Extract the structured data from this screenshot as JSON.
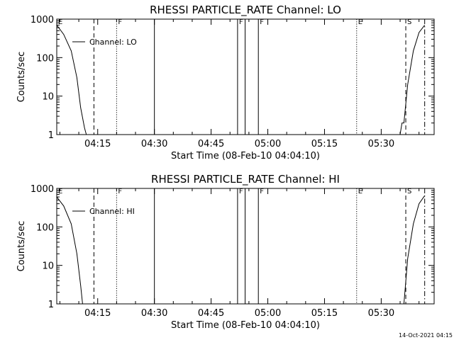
{
  "chart_data": [
    {
      "type": "line",
      "title": "RHESSI PARTICLE_RATE Channel: LO",
      "xlabel": "Start Time (08-Feb-10 04:04:10)",
      "ylabel": "Counts/sec",
      "y_scale": "log",
      "ylim": [
        1,
        1000
      ],
      "xlim": [
        "04:04:10",
        "05:44:00"
      ],
      "x_tick_labels": [
        "04:15",
        "04:30",
        "04:45",
        "05:00",
        "05:15",
        "05:30"
      ],
      "y_tick_labels": [
        "1",
        "10",
        "100",
        "1000"
      ],
      "legend": {
        "label": "Channel: LO",
        "placement": "top-left"
      },
      "series": [
        {
          "name": "Channel: LO",
          "x": [
            "04:04:10",
            "04:06:00",
            "04:08:00",
            "04:09:30",
            "04:10:30",
            "04:11:30",
            "04:12:00"
          ],
          "y": [
            700,
            400,
            150,
            30,
            5,
            1.5,
            1
          ]
        },
        {
          "name": "Channel: LO",
          "x": [
            "05:35:00",
            "05:35:30",
            "05:36:00",
            "05:37:00",
            "05:38:30",
            "05:40:00",
            "05:41:30"
          ],
          "y": [
            1,
            2,
            2,
            20,
            150,
            450,
            700
          ]
        }
      ],
      "markers": [
        {
          "label": "E",
          "time": "04:04:10",
          "style": "none"
        },
        {
          "label": "",
          "time": "04:14:00",
          "style": "dashed"
        },
        {
          "label": "F",
          "time": "04:20:00",
          "style": "dotted"
        },
        {
          "label": "",
          "time": "04:30:00",
          "style": "solid"
        },
        {
          "label": "F",
          "time": "04:52:00",
          "style": "solid"
        },
        {
          "label": "",
          "time": "04:54:00",
          "style": "solid"
        },
        {
          "label": "F",
          "time": "04:57:30",
          "style": "solid"
        },
        {
          "label": "E",
          "time": "05:23:30",
          "style": "dotted"
        },
        {
          "label": "S",
          "time": "05:36:30",
          "style": "dashed"
        },
        {
          "label": "",
          "time": "05:41:30",
          "style": "dashdot"
        }
      ]
    },
    {
      "type": "line",
      "title": "RHESSI PARTICLE_RATE Channel: HI",
      "xlabel": "Start Time (08-Feb-10 04:04:10)",
      "ylabel": "Counts/sec",
      "y_scale": "log",
      "ylim": [
        1,
        1000
      ],
      "xlim": [
        "04:04:10",
        "05:44:00"
      ],
      "x_tick_labels": [
        "04:15",
        "04:30",
        "04:45",
        "05:00",
        "05:15",
        "05:30"
      ],
      "y_tick_labels": [
        "1",
        "10",
        "100",
        "1000"
      ],
      "legend": {
        "label": "Channel: HI",
        "placement": "top-left"
      },
      "series": [
        {
          "name": "Channel: HI",
          "x": [
            "04:04:10",
            "04:06:00",
            "04:08:00",
            "04:09:30",
            "04:10:30",
            "04:11:00"
          ],
          "y": [
            600,
            350,
            120,
            20,
            3,
            1
          ]
        },
        {
          "name": "Channel: HI",
          "x": [
            "05:36:00",
            "05:37:00",
            "05:38:30",
            "05:40:00",
            "05:41:30"
          ],
          "y": [
            1,
            15,
            120,
            400,
            650
          ]
        }
      ],
      "markers": [
        {
          "label": "E",
          "time": "04:04:10",
          "style": "none"
        },
        {
          "label": "",
          "time": "04:14:00",
          "style": "dashed"
        },
        {
          "label": "F",
          "time": "04:20:00",
          "style": "dotted"
        },
        {
          "label": "",
          "time": "04:30:00",
          "style": "solid"
        },
        {
          "label": "F",
          "time": "04:52:00",
          "style": "solid"
        },
        {
          "label": "",
          "time": "04:54:00",
          "style": "solid"
        },
        {
          "label": "F",
          "time": "04:57:30",
          "style": "solid"
        },
        {
          "label": "E",
          "time": "05:23:30",
          "style": "dotted"
        },
        {
          "label": "S",
          "time": "05:36:30",
          "style": "dashed"
        },
        {
          "label": "",
          "time": "05:41:30",
          "style": "dashdot"
        }
      ]
    }
  ],
  "footer": {
    "timestamp": "14-Oct-2021 04:15"
  }
}
